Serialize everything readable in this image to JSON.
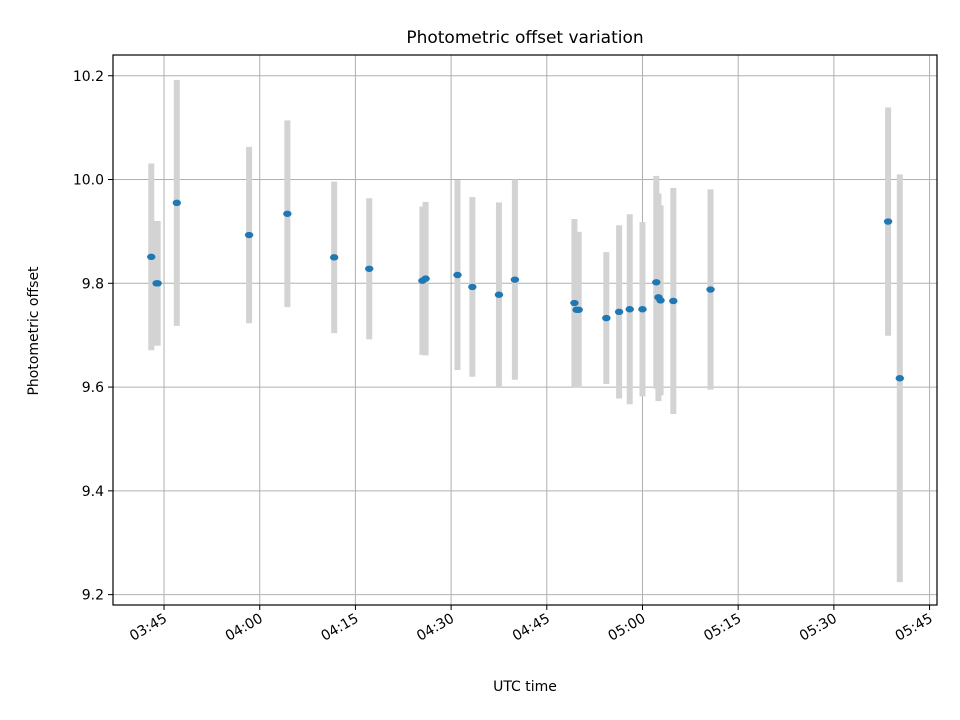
{
  "chart_data": {
    "type": "scatter",
    "title": "Photometric offset variation",
    "xlabel": "UTC time",
    "ylabel": "Photometric offset",
    "grid": true,
    "legend": "none",
    "xlim": [
      "03:37:00",
      "05:46:10"
    ],
    "ylim": [
      9.18,
      10.24
    ],
    "x_ticks": [
      "03:45",
      "04:00",
      "04:15",
      "04:30",
      "04:45",
      "05:00",
      "05:15",
      "05:30",
      "05:45"
    ],
    "y_ticks": [
      "9.2",
      "9.4",
      "9.6",
      "9.8",
      "10.0",
      "10.2"
    ],
    "colors": {
      "points": "#1f77b4",
      "error_bars": "#d3d3d3",
      "grid": "#b0b0b0"
    },
    "points": [
      {
        "x": "03:43:00",
        "y": 9.851,
        "yerr": 0.18
      },
      {
        "x": "03:43:50",
        "y": 9.8,
        "yerr": 0.12
      },
      {
        "x": "03:44:00",
        "y": 9.8,
        "yerr": 0.12
      },
      {
        "x": "03:47:00",
        "y": 9.955,
        "yerr": 0.237
      },
      {
        "x": "03:58:20",
        "y": 9.893,
        "yerr": 0.17
      },
      {
        "x": "04:04:20",
        "y": 9.934,
        "yerr": 0.18
      },
      {
        "x": "04:11:40",
        "y": 9.85,
        "yerr": 0.146
      },
      {
        "x": "04:17:10",
        "y": 9.828,
        "yerr": 0.136
      },
      {
        "x": "04:25:30",
        "y": 9.805,
        "yerr": 0.143
      },
      {
        "x": "04:26:00",
        "y": 9.809,
        "yerr": 0.148
      },
      {
        "x": "04:31:00",
        "y": 9.816,
        "yerr": 0.183
      },
      {
        "x": "04:33:20",
        "y": 9.793,
        "yerr": 0.173
      },
      {
        "x": "04:37:30",
        "y": 9.778,
        "yerr": 0.178
      },
      {
        "x": "04:40:00",
        "y": 9.807,
        "yerr": 0.193
      },
      {
        "x": "04:49:20",
        "y": 9.762,
        "yerr": 0.162
      },
      {
        "x": "04:49:40",
        "y": 9.749,
        "yerr": 0.15
      },
      {
        "x": "04:50:00",
        "y": 9.749,
        "yerr": 0.15
      },
      {
        "x": "04:54:20",
        "y": 9.733,
        "yerr": 0.127
      },
      {
        "x": "04:56:20",
        "y": 9.745,
        "yerr": 0.167
      },
      {
        "x": "04:58:00",
        "y": 9.75,
        "yerr": 0.183
      },
      {
        "x": "05:00:00",
        "y": 9.75,
        "yerr": 0.168
      },
      {
        "x": "05:02:10",
        "y": 9.802,
        "yerr": 0.205
      },
      {
        "x": "05:02:30",
        "y": 9.773,
        "yerr": 0.2
      },
      {
        "x": "05:02:50",
        "y": 9.767,
        "yerr": 0.183
      },
      {
        "x": "05:04:50",
        "y": 9.766,
        "yerr": 0.218
      },
      {
        "x": "05:10:40",
        "y": 9.788,
        "yerr": 0.193
      },
      {
        "x": "05:38:30",
        "y": 9.919,
        "yerr": 0.22
      },
      {
        "x": "05:40:20",
        "y": 9.617,
        "yerr": 0.393
      }
    ]
  }
}
